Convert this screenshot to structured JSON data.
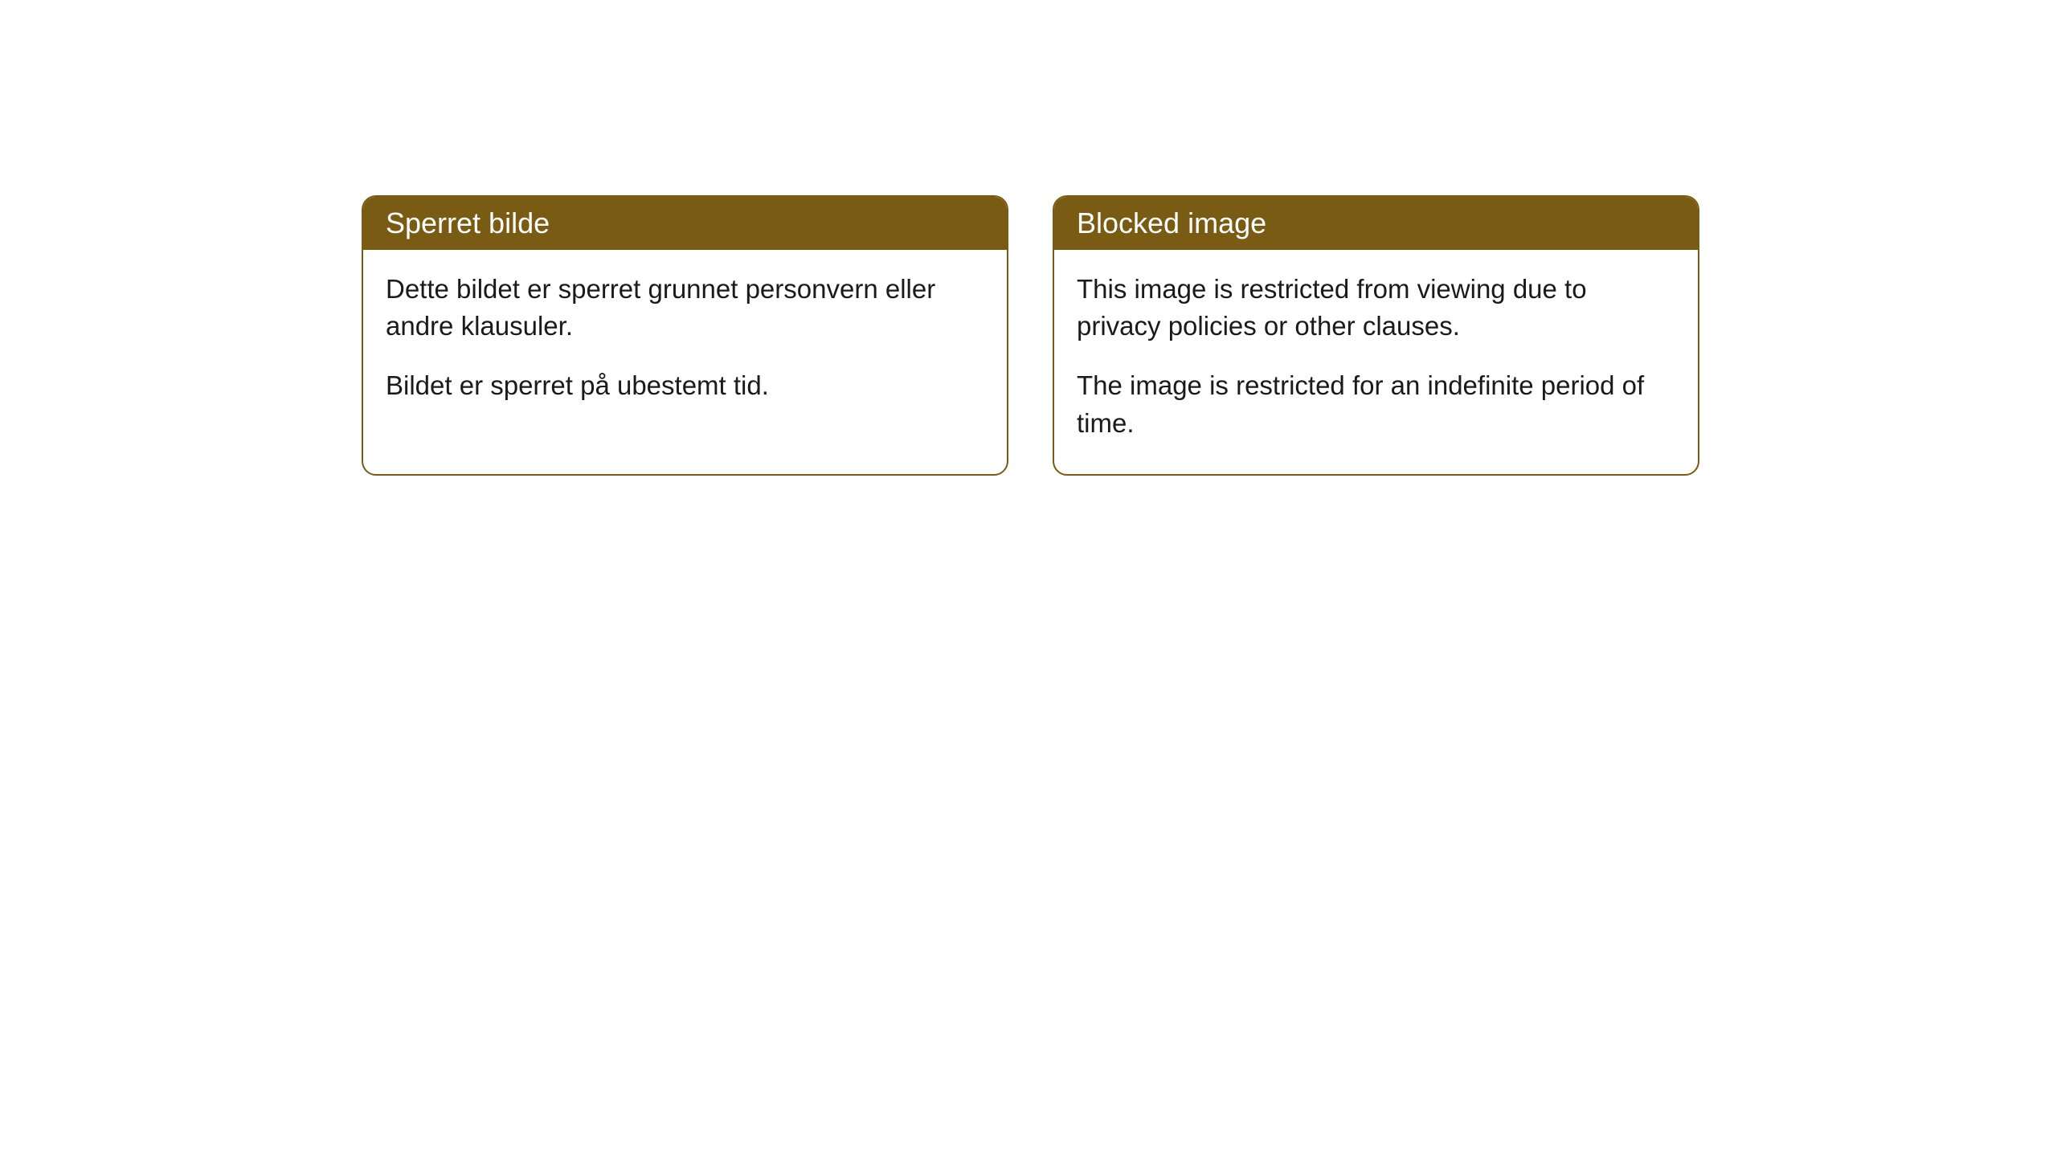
{
  "layout": {
    "background_color": "#ffffff",
    "card_border_color": "#7a5b13",
    "card_header_bg": "#7a5b13",
    "card_header_text_color": "#ffffff",
    "card_body_text_color": "#1a1a1a",
    "card_border_radius": 18,
    "header_fontsize": 36,
    "body_fontsize": 33
  },
  "cards": [
    {
      "title": "Sperret bilde",
      "paragraphs": [
        "Dette bildet er sperret grunnet personvern eller andre klausuler.",
        "Bildet er sperret på ubestemt tid."
      ]
    },
    {
      "title": "Blocked image",
      "paragraphs": [
        "This image is restricted from viewing due to privacy policies or other clauses.",
        "The image is restricted for an indefinite period of time."
      ]
    }
  ]
}
